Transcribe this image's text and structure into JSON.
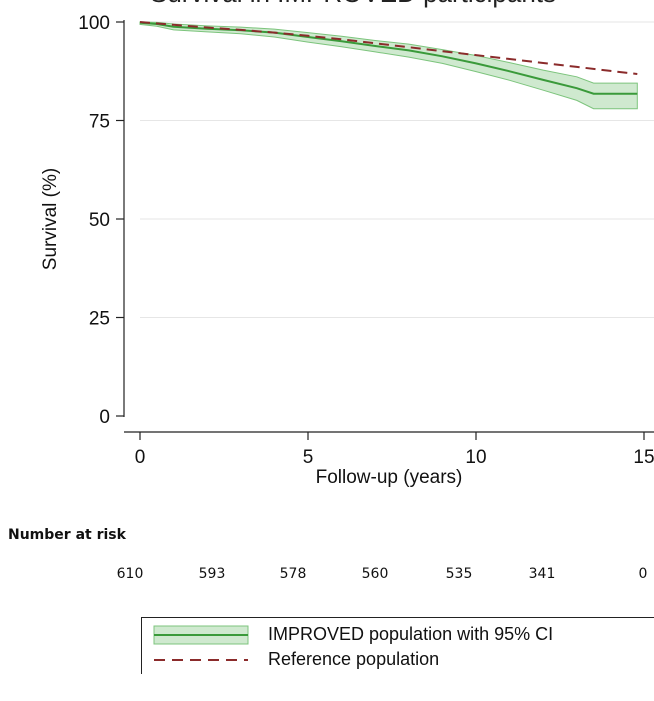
{
  "chart_data": {
    "type": "line",
    "title": "Survival in IMPROVED participants",
    "xlabel": "Follow-up (years)",
    "ylabel": "Survival (%)",
    "xlim": [
      0,
      15
    ],
    "ylim": [
      0,
      100
    ],
    "xticks": [
      0,
      5,
      10,
      15
    ],
    "yticks": [
      0,
      25,
      50,
      75,
      100
    ],
    "grid": true,
    "legend_position": "bottom",
    "series": [
      {
        "name": "IMPROVED population with 95% CI",
        "style": "solid",
        "color": "#3a9a3a",
        "x": [
          0,
          0.5,
          1,
          2,
          3,
          4,
          5,
          6,
          7,
          8,
          9,
          10,
          11,
          12,
          13,
          13.5,
          14,
          14.8
        ],
        "y": [
          99.8,
          99.5,
          98.8,
          98.3,
          97.9,
          97.3,
          96.2,
          95.1,
          93.9,
          92.8,
          91.3,
          89.5,
          87.5,
          85.3,
          83.2,
          81.8,
          81.8,
          81.8
        ],
        "ci_lower": [
          99.4,
          98.9,
          98.0,
          97.5,
          97.0,
          96.2,
          94.9,
          93.7,
          92.4,
          91.1,
          89.5,
          87.4,
          85.2,
          82.7,
          80.1,
          78.0,
          78.0,
          78.0
        ],
        "ci_upper": [
          100,
          99.9,
          99.5,
          99.0,
          98.7,
          98.2,
          97.3,
          96.4,
          95.3,
          94.4,
          93.0,
          91.5,
          89.7,
          87.8,
          86.1,
          84.5,
          84.5,
          84.5
        ]
      },
      {
        "name": "Reference population",
        "style": "dashed",
        "color": "#8b2b2b",
        "x": [
          0,
          1,
          2,
          3,
          4,
          5,
          6,
          7,
          8,
          9,
          10,
          11,
          12,
          13,
          14,
          14.8
        ],
        "y": [
          100,
          99.3,
          98.6,
          98.0,
          97.3,
          96.5,
          95.6,
          94.6,
          93.6,
          92.6,
          91.6,
          90.6,
          89.6,
          88.6,
          87.6,
          86.8
        ]
      }
    ],
    "number_at_risk": {
      "label": "Number at risk",
      "values": [
        "610",
        "593",
        "578",
        "560",
        "535",
        "341",
        "0"
      ]
    }
  },
  "colors": {
    "ci_fill": "#cfe9cf",
    "ci_border": "#7cc47c",
    "axis": "#222222",
    "grid": "#e6e6e6"
  }
}
